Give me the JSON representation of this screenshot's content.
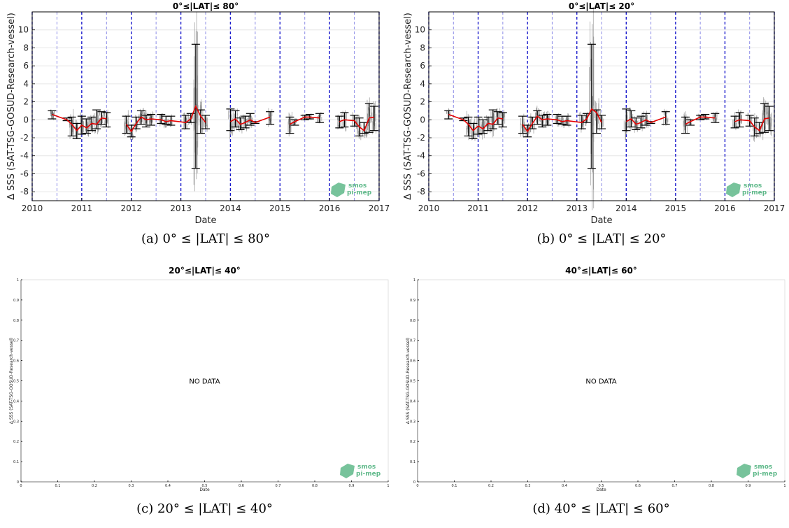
{
  "figure": {
    "colors": {
      "axis": "#000000",
      "year_line": "#1a1acc",
      "half_year_line": "#8c8ce6",
      "grid": "#e6e6e6",
      "error_bar": "#000000",
      "mean_line": "#e60000",
      "scatter": "#808080",
      "logo": "#5fb98a"
    },
    "logo": {
      "line1": "smos",
      "line2": "pi-mep"
    }
  },
  "chart_data": [
    {
      "id": "a",
      "type": "scatter",
      "title": "0°≤|LAT|≤ 80°",
      "caption": "(a) 0° ≤ |LAT| ≤ 80°",
      "ylabel": "Δ SSS (SAT-TSG-GOSUD-Research-vessel)",
      "xlabel": "Date",
      "xlim": [
        2010,
        2017
      ],
      "ylim": [
        -9,
        12
      ],
      "x_ticks": [
        2010,
        2011,
        2012,
        2013,
        2014,
        2015,
        2016,
        2017
      ],
      "y_ticks": [
        -8,
        -6,
        -4,
        -2,
        0,
        2,
        4,
        6,
        8,
        10
      ],
      "grid": true,
      "error_bars": [
        {
          "x": 2010.4,
          "mean": 0.6,
          "lo": 0.1,
          "hi": 1.0
        },
        {
          "x": 2010.7,
          "mean": 0.0,
          "lo": -0.1,
          "hi": 0.2
        },
        {
          "x": 2010.8,
          "mean": -0.5,
          "lo": -1.8,
          "hi": 0.3
        },
        {
          "x": 2010.9,
          "mean": -1.2,
          "lo": -2.1,
          "hi": -0.4
        },
        {
          "x": 2011.0,
          "mean": -0.6,
          "lo": -1.6,
          "hi": 0.4
        },
        {
          "x": 2011.1,
          "mean": -0.9,
          "lo": -1.5,
          "hi": 0.1
        },
        {
          "x": 2011.2,
          "mean": -0.4,
          "lo": -1.2,
          "hi": 0.3
        },
        {
          "x": 2011.3,
          "mean": -0.5,
          "lo": -1.0,
          "hi": 1.1
        },
        {
          "x": 2011.4,
          "mean": 0.2,
          "lo": -0.5,
          "hi": 0.9
        },
        {
          "x": 2011.5,
          "mean": 0.1,
          "lo": -0.8,
          "hi": 0.8
        },
        {
          "x": 2011.9,
          "mean": -0.5,
          "lo": -1.5,
          "hi": 0.4
        },
        {
          "x": 2012.0,
          "mean": -1.3,
          "lo": -1.9,
          "hi": -0.6
        },
        {
          "x": 2012.1,
          "mean": -0.4,
          "lo": -1.0,
          "hi": 0.3
        },
        {
          "x": 2012.2,
          "mean": 0.3,
          "lo": -0.5,
          "hi": 1.0
        },
        {
          "x": 2012.3,
          "mean": 0.0,
          "lo": -0.8,
          "hi": 0.5
        },
        {
          "x": 2012.4,
          "mean": 0.1,
          "lo": -0.6,
          "hi": 0.6
        },
        {
          "x": 2012.6,
          "mean": 0.0,
          "lo": -0.4,
          "hi": 0.6
        },
        {
          "x": 2012.7,
          "mean": -0.2,
          "lo": -0.5,
          "hi": 0.4
        },
        {
          "x": 2012.8,
          "mean": -0.1,
          "lo": -0.6,
          "hi": 0.4
        },
        {
          "x": 2013.1,
          "mean": -0.3,
          "lo": -1.0,
          "hi": 0.5
        },
        {
          "x": 2013.2,
          "mean": 0.1,
          "lo": -0.3,
          "hi": 0.7
        },
        {
          "x": 2013.3,
          "mean": 1.5,
          "lo": -5.4,
          "hi": 8.4
        },
        {
          "x": 2013.4,
          "mean": 0.4,
          "lo": -1.5,
          "hi": 1.1
        },
        {
          "x": 2013.5,
          "mean": -0.3,
          "lo": -1.0,
          "hi": 0.5
        },
        {
          "x": 2014.0,
          "mean": -0.2,
          "lo": -1.2,
          "hi": 1.2
        },
        {
          "x": 2014.1,
          "mean": 0.1,
          "lo": -0.8,
          "hi": 1.0
        },
        {
          "x": 2014.2,
          "mean": -0.5,
          "lo": -1.1,
          "hi": 0.2
        },
        {
          "x": 2014.3,
          "mean": -0.3,
          "lo": -0.9,
          "hi": 0.4
        },
        {
          "x": 2014.4,
          "mean": 0.0,
          "lo": -0.6,
          "hi": 0.7
        },
        {
          "x": 2014.5,
          "mean": -0.3,
          "lo": -0.4,
          "hi": -0.2
        },
        {
          "x": 2014.8,
          "mean": 0.3,
          "lo": -0.5,
          "hi": 0.9
        },
        {
          "x": 2015.2,
          "mean": -0.5,
          "lo": -1.5,
          "hi": 0.3
        },
        {
          "x": 2015.3,
          "mean": -0.2,
          "lo": -0.6,
          "hi": 0.0
        },
        {
          "x": 2015.5,
          "mean": 0.3,
          "lo": 0.0,
          "hi": 0.5
        },
        {
          "x": 2015.6,
          "mean": 0.3,
          "lo": 0.1,
          "hi": 0.6
        },
        {
          "x": 2015.8,
          "mean": 0.2,
          "lo": -0.3,
          "hi": 0.7
        },
        {
          "x": 2016.2,
          "mean": -0.2,
          "lo": -0.9,
          "hi": 0.4
        },
        {
          "x": 2016.3,
          "mean": 0.0,
          "lo": -0.8,
          "hi": 0.8
        },
        {
          "x": 2016.5,
          "mean": -0.1,
          "lo": -0.7,
          "hi": 0.5
        },
        {
          "x": 2016.6,
          "mean": -0.8,
          "lo": -1.8,
          "hi": 0.2
        },
        {
          "x": 2016.7,
          "mean": -1.2,
          "lo": -1.5,
          "hi": -0.3
        },
        {
          "x": 2016.8,
          "mean": 0.2,
          "lo": -1.4,
          "hi": 1.8
        },
        {
          "x": 2016.9,
          "mean": 0.3,
          "lo": -1.2,
          "hi": 1.5
        }
      ]
    },
    {
      "id": "b",
      "type": "scatter",
      "title": "0°≤|LAT|≤ 20°",
      "caption": "(b) 0° ≤ |LAT| ≤ 20°",
      "ylabel": "Δ SSS (SAT-TSG-GOSUD-Research-vessel)",
      "xlabel": "Date",
      "xlim": [
        2010,
        2017
      ],
      "ylim": [
        -9,
        12
      ],
      "x_ticks": [
        2010,
        2011,
        2012,
        2013,
        2014,
        2015,
        2016,
        2017
      ],
      "y_ticks": [
        -8,
        -6,
        -4,
        -2,
        0,
        2,
        4,
        6,
        8,
        10
      ],
      "grid": true,
      "error_bars": [
        {
          "x": 2010.4,
          "mean": 0.6,
          "lo": 0.1,
          "hi": 1.0
        },
        {
          "x": 2010.7,
          "mean": 0.0,
          "lo": -0.1,
          "hi": 0.2
        },
        {
          "x": 2010.8,
          "mean": -0.5,
          "lo": -1.8,
          "hi": 0.3
        },
        {
          "x": 2010.9,
          "mean": -1.2,
          "lo": -2.1,
          "hi": -0.4
        },
        {
          "x": 2011.0,
          "mean": -0.7,
          "lo": -1.6,
          "hi": 0.3
        },
        {
          "x": 2011.1,
          "mean": -1.0,
          "lo": -1.5,
          "hi": 0.0
        },
        {
          "x": 2011.2,
          "mean": -0.4,
          "lo": -1.2,
          "hi": 0.3
        },
        {
          "x": 2011.3,
          "mean": -0.5,
          "lo": -1.0,
          "hi": 1.1
        },
        {
          "x": 2011.4,
          "mean": 0.2,
          "lo": -0.5,
          "hi": 0.9
        },
        {
          "x": 2011.5,
          "mean": 0.1,
          "lo": -0.8,
          "hi": 0.8
        },
        {
          "x": 2011.9,
          "mean": -0.5,
          "lo": -1.5,
          "hi": 0.4
        },
        {
          "x": 2012.0,
          "mean": -1.3,
          "lo": -1.9,
          "hi": -0.6
        },
        {
          "x": 2012.1,
          "mean": -0.4,
          "lo": -1.0,
          "hi": 0.3
        },
        {
          "x": 2012.2,
          "mean": 0.4,
          "lo": -0.5,
          "hi": 1.0
        },
        {
          "x": 2012.3,
          "mean": 0.0,
          "lo": -0.8,
          "hi": 0.5
        },
        {
          "x": 2012.4,
          "mean": 0.1,
          "lo": -0.6,
          "hi": 0.6
        },
        {
          "x": 2012.6,
          "mean": 0.0,
          "lo": -0.4,
          "hi": 0.6
        },
        {
          "x": 2012.7,
          "mean": -0.2,
          "lo": -0.5,
          "hi": 0.4
        },
        {
          "x": 2012.8,
          "mean": -0.1,
          "lo": -0.6,
          "hi": 0.4
        },
        {
          "x": 2013.1,
          "mean": -0.3,
          "lo": -1.0,
          "hi": 0.5
        },
        {
          "x": 2013.2,
          "mean": 0.1,
          "lo": -0.3,
          "hi": 0.7
        },
        {
          "x": 2013.3,
          "mean": 1.2,
          "lo": -5.4,
          "hi": 8.4
        },
        {
          "x": 2013.4,
          "mean": 0.8,
          "lo": -1.5,
          "hi": 1.1
        },
        {
          "x": 2013.5,
          "mean": -0.3,
          "lo": -1.0,
          "hi": 0.5
        },
        {
          "x": 2014.0,
          "mean": -0.2,
          "lo": -1.2,
          "hi": 1.2
        },
        {
          "x": 2014.1,
          "mean": 0.1,
          "lo": -0.8,
          "hi": 1.0
        },
        {
          "x": 2014.2,
          "mean": -0.5,
          "lo": -1.1,
          "hi": 0.2
        },
        {
          "x": 2014.3,
          "mean": -0.3,
          "lo": -0.9,
          "hi": 0.4
        },
        {
          "x": 2014.4,
          "mean": 0.0,
          "lo": -0.6,
          "hi": 0.7
        },
        {
          "x": 2014.5,
          "mean": -0.3,
          "lo": -0.4,
          "hi": -0.2
        },
        {
          "x": 2014.8,
          "mean": 0.3,
          "lo": -0.5,
          "hi": 0.9
        },
        {
          "x": 2015.2,
          "mean": -0.5,
          "lo": -1.5,
          "hi": 0.3
        },
        {
          "x": 2015.3,
          "mean": -0.2,
          "lo": -0.6,
          "hi": 0.0
        },
        {
          "x": 2015.5,
          "mean": 0.3,
          "lo": 0.0,
          "hi": 0.5
        },
        {
          "x": 2015.6,
          "mean": 0.3,
          "lo": 0.1,
          "hi": 0.6
        },
        {
          "x": 2015.8,
          "mean": 0.2,
          "lo": -0.3,
          "hi": 0.7
        },
        {
          "x": 2016.2,
          "mean": -0.2,
          "lo": -0.9,
          "hi": 0.4
        },
        {
          "x": 2016.3,
          "mean": 0.0,
          "lo": -0.8,
          "hi": 0.8
        },
        {
          "x": 2016.5,
          "mean": -0.1,
          "lo": -0.7,
          "hi": 0.5
        },
        {
          "x": 2016.6,
          "mean": -0.8,
          "lo": -1.8,
          "hi": 0.2
        },
        {
          "x": 2016.7,
          "mean": -1.2,
          "lo": -1.5,
          "hi": -0.3
        },
        {
          "x": 2016.8,
          "mean": 0.1,
          "lo": -1.4,
          "hi": 1.8
        },
        {
          "x": 2016.9,
          "mean": 0.2,
          "lo": -1.2,
          "hi": 1.5
        }
      ]
    },
    {
      "id": "c",
      "type": "scatter",
      "title": "20°≤|LAT|≤ 40°",
      "caption": "(c) 20° ≤ |LAT| ≤ 40°",
      "ylabel": "Δ SSS (SAT-TSG-GOSUD-Research-vessel)",
      "xlabel": "Date",
      "annotation": "NO DATA",
      "xlim": [
        0,
        1
      ],
      "ylim": [
        0,
        1
      ],
      "x_ticks": [
        0,
        0.1,
        0.2,
        0.3,
        0.4,
        0.5,
        0.6,
        0.7,
        0.8,
        0.9,
        1
      ],
      "y_ticks": [
        0,
        0.1,
        0.2,
        0.3,
        0.4,
        0.5,
        0.6,
        0.7,
        0.8,
        0.9,
        1
      ],
      "grid": false
    },
    {
      "id": "d",
      "type": "scatter",
      "title": "40°≤|LAT|≤ 60°",
      "caption": "(d) 40° ≤ |LAT| ≤ 60°",
      "ylabel": "Δ SSS (SAT-TSG-GOSUD-Research-vessel)",
      "xlabel": "Date",
      "annotation": "NO DATA",
      "xlim": [
        0,
        1
      ],
      "ylim": [
        0,
        1
      ],
      "x_ticks": [
        0,
        0.1,
        0.2,
        0.3,
        0.4,
        0.5,
        0.6,
        0.7,
        0.8,
        0.9,
        1
      ],
      "y_ticks": [
        0,
        0.1,
        0.2,
        0.3,
        0.4,
        0.5,
        0.6,
        0.7,
        0.8,
        0.9,
        1
      ],
      "grid": false
    }
  ]
}
